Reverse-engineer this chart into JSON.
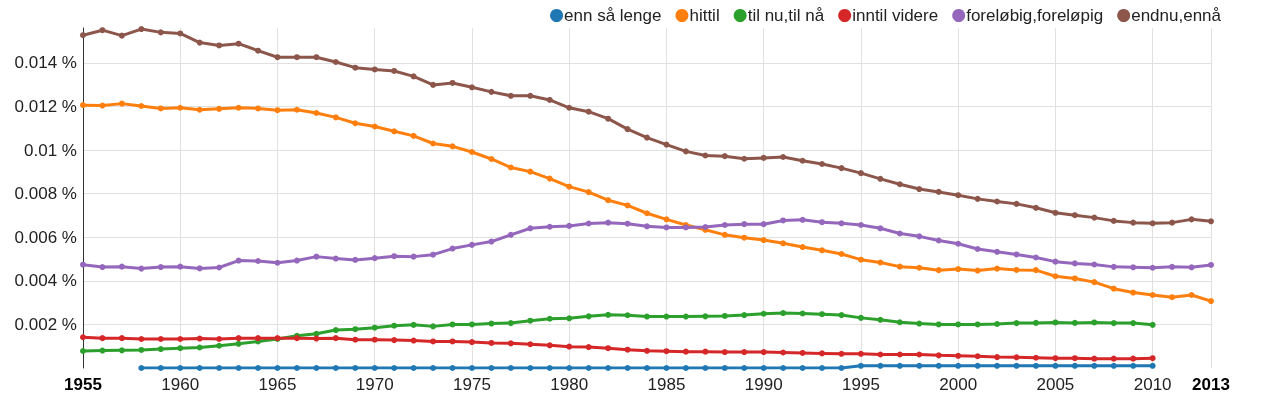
{
  "chart_data": {
    "type": "line",
    "x": [
      1955,
      1956,
      1957,
      1958,
      1959,
      1960,
      1961,
      1962,
      1963,
      1964,
      1965,
      1966,
      1967,
      1968,
      1969,
      1970,
      1971,
      1972,
      1973,
      1974,
      1975,
      1976,
      1977,
      1978,
      1979,
      1980,
      1981,
      1982,
      1983,
      1984,
      1985,
      1986,
      1987,
      1988,
      1989,
      1990,
      1991,
      1992,
      1993,
      1994,
      1995,
      1996,
      1997,
      1998,
      1999,
      2000,
      2001,
      2002,
      2003,
      2004,
      2005,
      2006,
      2007,
      2008,
      2009,
      2010,
      2011,
      2012,
      2013
    ],
    "series": [
      {
        "name": "enn så lenge",
        "color": "#1f77b4",
        "values": [
          null,
          null,
          null,
          0,
          0,
          0,
          0,
          0,
          0,
          0,
          0,
          0,
          0,
          0,
          0,
          0,
          0,
          0,
          0,
          0,
          0,
          0,
          0,
          0,
          0,
          0,
          0,
          0,
          0,
          0,
          0,
          0,
          0,
          0,
          0,
          0,
          0,
          0,
          0,
          0,
          0.0001,
          0.0001,
          0.0001,
          0.0001,
          0.0001,
          0.0001,
          0.0001,
          0.0001,
          0.0001,
          0.0001,
          0.0001,
          0.0001,
          0.0001,
          0.0001,
          0.0001,
          0.0001,
          null,
          null,
          null
        ]
      },
      {
        "name": "hittil",
        "color": "#ff7f0e",
        "values": [
          0.01206,
          0.01204,
          0.01213,
          0.01202,
          0.01191,
          0.01194,
          0.01185,
          0.01189,
          0.01194,
          0.01191,
          0.01183,
          0.01185,
          0.0117,
          0.0115,
          0.01123,
          0.01108,
          0.01086,
          0.01065,
          0.0103,
          0.01017,
          0.00991,
          0.00959,
          0.0092,
          0.00901,
          0.00869,
          0.00832,
          0.00807,
          0.0077,
          0.00746,
          0.0071,
          0.00682,
          0.00656,
          0.00634,
          0.00611,
          0.00598,
          0.00587,
          0.00572,
          0.00555,
          0.0054,
          0.00523,
          0.00497,
          0.00484,
          0.00465,
          0.0046,
          0.00449,
          0.00454,
          0.00447,
          0.00456,
          0.0045,
          0.00449,
          0.00421,
          0.00411,
          0.00394,
          0.00364,
          0.00346,
          0.00335,
          0.00325,
          0.00335,
          0.00307
        ]
      },
      {
        "name": "til nu,til nå",
        "color": "#2ca02c",
        "values": [
          0.00078,
          0.0008,
          0.00081,
          0.00083,
          0.00087,
          0.00091,
          0.00094,
          0.00102,
          0.00111,
          0.00122,
          0.00133,
          0.00148,
          0.00157,
          0.00174,
          0.00178,
          0.00185,
          0.00194,
          0.00198,
          0.00191,
          0.002,
          0.002,
          0.00204,
          0.00206,
          0.00217,
          0.00226,
          0.00228,
          0.00237,
          0.00244,
          0.00242,
          0.00236,
          0.00236,
          0.00236,
          0.00237,
          0.00239,
          0.00243,
          0.00249,
          0.00252,
          0.0025,
          0.00247,
          0.00243,
          0.0023,
          0.00221,
          0.0021,
          0.00204,
          0.002,
          0.002,
          0.002,
          0.00202,
          0.00206,
          0.00207,
          0.00209,
          0.00207,
          0.00209,
          0.00206,
          0.00206,
          0.00198,
          null,
          null,
          null
        ]
      },
      {
        "name": "inntil videre",
        "color": "#d62728",
        "values": [
          0.00141,
          0.00137,
          0.00137,
          0.00133,
          0.00133,
          0.00133,
          0.00135,
          0.00133,
          0.00137,
          0.00137,
          0.00137,
          0.00137,
          0.00135,
          0.00137,
          0.0013,
          0.0013,
          0.00128,
          0.00126,
          0.00122,
          0.00122,
          0.00119,
          0.00115,
          0.00113,
          0.00109,
          0.00104,
          0.00098,
          0.00096,
          0.00091,
          0.00084,
          0.00079,
          0.00077,
          0.00075,
          0.00075,
          0.00073,
          0.00073,
          0.00073,
          0.00071,
          0.00069,
          0.00067,
          0.00065,
          0.00065,
          0.00062,
          0.00062,
          0.00062,
          0.00058,
          0.00056,
          0.00054,
          0.0005,
          0.00049,
          0.00047,
          0.00045,
          0.00045,
          0.00043,
          0.00043,
          0.00043,
          0.00045,
          null,
          null,
          null
        ]
      },
      {
        "name": "foreløbig,foreløpig",
        "color": "#9467bd",
        "values": [
          0.00474,
          0.00463,
          0.00465,
          0.00456,
          0.00463,
          0.00465,
          0.00457,
          0.00461,
          0.00493,
          0.00491,
          0.00483,
          0.00493,
          0.00511,
          0.00502,
          0.00496,
          0.00504,
          0.00513,
          0.00511,
          0.0052,
          0.00548,
          0.00565,
          0.0058,
          0.00611,
          0.00641,
          0.00648,
          0.00652,
          0.00663,
          0.00667,
          0.00662,
          0.0065,
          0.00645,
          0.00645,
          0.00647,
          0.00656,
          0.0066,
          0.0066,
          0.00677,
          0.0068,
          0.00669,
          0.00664,
          0.00656,
          0.00641,
          0.00617,
          0.00604,
          0.00585,
          0.0057,
          0.00546,
          0.00533,
          0.00521,
          0.00507,
          0.00488,
          0.0048,
          0.00475,
          0.00464,
          0.00462,
          0.0046,
          0.00464,
          0.00462,
          0.00473
        ]
      },
      {
        "name": "endnu,ennå",
        "color": "#8c564b",
        "values": [
          0.01527,
          0.0155,
          0.01525,
          0.01555,
          0.0154,
          0.01535,
          0.01493,
          0.0148,
          0.01488,
          0.01456,
          0.01426,
          0.01426,
          0.01426,
          0.01404,
          0.01378,
          0.0137,
          0.01363,
          0.01338,
          0.01299,
          0.01308,
          0.01288,
          0.01267,
          0.01249,
          0.01249,
          0.0123,
          0.01194,
          0.01176,
          0.01144,
          0.01096,
          0.01057,
          0.01025,
          0.00994,
          0.00975,
          0.00972,
          0.0096,
          0.00964,
          0.00968,
          0.00951,
          0.00936,
          0.00917,
          0.00894,
          0.00868,
          0.00843,
          0.00821,
          0.00808,
          0.00793,
          0.00776,
          0.00764,
          0.00753,
          0.00735,
          0.00712,
          0.00701,
          0.0069,
          0.00675,
          0.00667,
          0.00664,
          0.00667,
          0.00682,
          0.00673
        ]
      }
    ],
    "xlim": [
      1955,
      2013
    ],
    "xticks": [
      1955,
      1960,
      1965,
      1970,
      1975,
      1980,
      1985,
      1990,
      1995,
      2000,
      2005,
      2010,
      2013
    ],
    "ylim": [
      0,
      0.0156
    ],
    "yticks": [
      {
        "value": 0.002,
        "label": "0.002 %"
      },
      {
        "value": 0.004,
        "label": "0.004 %"
      },
      {
        "value": 0.006,
        "label": "0.006 %"
      },
      {
        "value": 0.008,
        "label": "0.008 %"
      },
      {
        "value": 0.01,
        "label": "0.01 %"
      },
      {
        "value": 0.012,
        "label": "0.012 %"
      },
      {
        "value": 0.014,
        "label": "0.014 %"
      }
    ],
    "grid": true,
    "legend": "top right",
    "marker": "circle",
    "line_style": "solid"
  }
}
